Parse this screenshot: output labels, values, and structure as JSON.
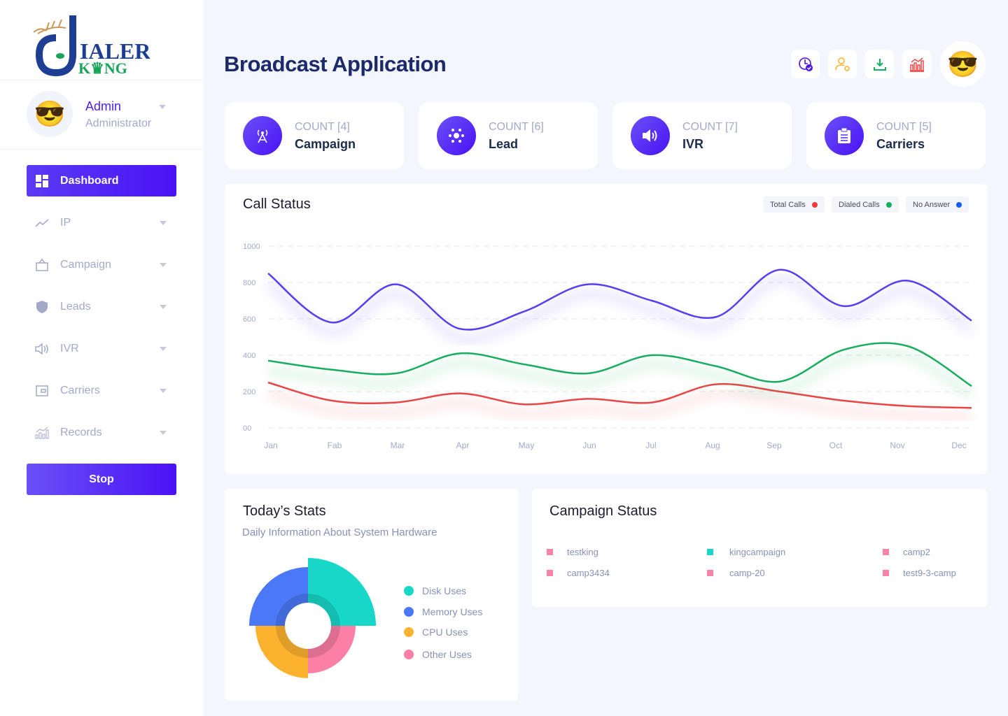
{
  "brand": {
    "logo_text_1": "DIALER",
    "logo_text_2": "KING"
  },
  "user": {
    "name": "Admin",
    "role": "Administrator"
  },
  "sidebar": {
    "items": [
      {
        "label": "Dashboard",
        "icon": "dashboard-icon",
        "active": true
      },
      {
        "label": "IP",
        "icon": "trend-icon"
      },
      {
        "label": "Campaign",
        "icon": "campaign-icon"
      },
      {
        "label": "Leads",
        "icon": "shield-icon"
      },
      {
        "label": "IVR",
        "icon": "speaker-icon"
      },
      {
        "label": "Carriers",
        "icon": "wallet-icon"
      },
      {
        "label": "Records",
        "icon": "bar-chart-icon"
      }
    ],
    "stop_label": "Stop"
  },
  "header": {
    "title": "Broadcast Application",
    "toolbar_icons": [
      "clock-check-icon",
      "user-settings-icon",
      "download-icon",
      "chart-icon"
    ]
  },
  "counts": [
    {
      "count": "COUNT [4]",
      "label": "Campaign",
      "icon": "tower-icon"
    },
    {
      "count": "COUNT [6]",
      "label": "Lead",
      "icon": "network-icon"
    },
    {
      "count": "COUNT [7]",
      "label": "IVR",
      "icon": "speaker-icon"
    },
    {
      "count": "COUNT [5]",
      "label": "Carriers",
      "icon": "clipboard-icon"
    }
  ],
  "colors": {
    "accent": "#4a12f5",
    "total": "#ef3b3b",
    "dialed": "#12b15d",
    "noanswer": "#1060ef"
  },
  "chart_data": {
    "type": "line",
    "title": "Call Status",
    "categories": [
      "Jan",
      "Fab",
      "Mar",
      "Apr",
      "May",
      "Jun",
      "Jul",
      "Aug",
      "Sep",
      "Oct",
      "Nov",
      "Dec"
    ],
    "yticks": [
      "00",
      "200",
      "400",
      "600",
      "800",
      "1000"
    ],
    "ylim": [
      0,
      1000
    ],
    "grid": true,
    "legend": "top-right",
    "series": [
      {
        "name": "Total Calls",
        "color": "#ef3b3b",
        "values": [
          250,
          150,
          140,
          190,
          130,
          160,
          140,
          240,
          200,
          150,
          120,
          110
        ],
        "line_color": "#e94545"
      },
      {
        "name": "Dialed Calls",
        "color": "#12b15d",
        "values": [
          370,
          320,
          300,
          410,
          350,
          300,
          400,
          340,
          255,
          430,
          450,
          230
        ],
        "line_color": "#18ad5f"
      },
      {
        "name": "No Answer",
        "color": "#1060ef",
        "values": [
          850,
          580,
          790,
          545,
          640,
          790,
          700,
          610,
          870,
          670,
          810,
          590
        ],
        "line_color": "#5a3cf2"
      }
    ]
  },
  "today": {
    "title": "Today’s Stats",
    "subtitle": "Daily Information About System Hardware",
    "legend": [
      {
        "label": "Disk Uses",
        "color": "#17d8c8"
      },
      {
        "label": "Memory Uses",
        "color": "#4a78f6"
      },
      {
        "label": "CPU Uses",
        "color": "#fdb22f"
      },
      {
        "label": "Other Uses",
        "color": "#fb7fa6"
      }
    ]
  },
  "campaign_status": {
    "title": "Campaign Status",
    "items": [
      {
        "name": "testking",
        "color": "#fb82a8"
      },
      {
        "name": "kingcampaign",
        "color": "#17d8c8"
      },
      {
        "name": "camp2",
        "color": "#fb82a8"
      },
      {
        "name": "camp3434",
        "color": "#fb82a8"
      },
      {
        "name": "camp-20",
        "color": "#fb82a8"
      },
      {
        "name": "test9-3-camp",
        "color": "#fb82a8"
      }
    ]
  }
}
